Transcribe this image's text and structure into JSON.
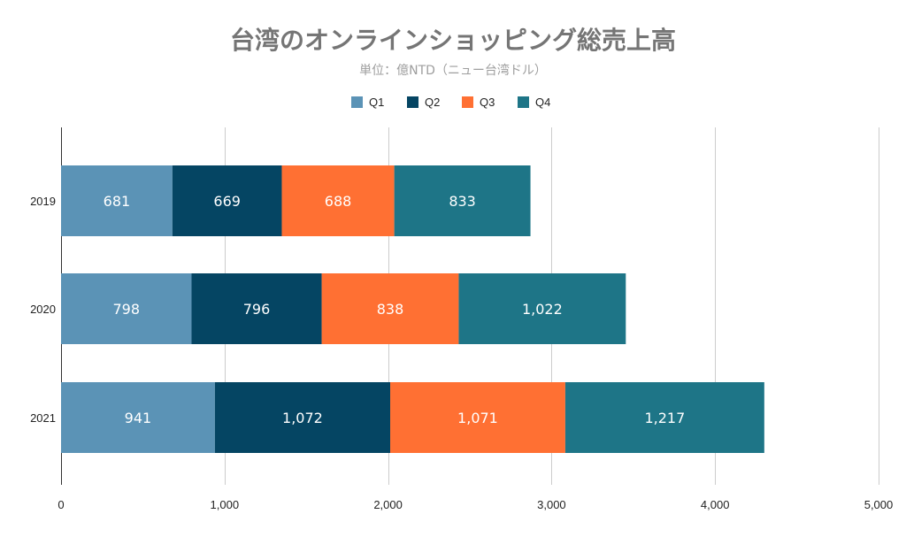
{
  "chart_data": {
    "type": "bar",
    "orientation": "horizontal",
    "stacked": true,
    "title": "台湾のオンラインショッピング総売上高",
    "subtitle": "単位：億NTD（ニュー台湾ドル）",
    "categories": [
      "2019",
      "2020",
      "2021"
    ],
    "series": [
      {
        "name": "Q1",
        "color": "#5b93b6",
        "values": [
          681,
          798,
          941
        ]
      },
      {
        "name": "Q2",
        "color": "#054563",
        "values": [
          669,
          796,
          1072
        ]
      },
      {
        "name": "Q3",
        "color": "#ff7033",
        "values": [
          688,
          838,
          1071
        ]
      },
      {
        "name": "Q4",
        "color": "#1e7587",
        "values": [
          833,
          1022,
          1217
        ]
      }
    ],
    "xlim": [
      0,
      5000
    ],
    "xticks": [
      0,
      1000,
      2000,
      3000,
      4000,
      5000
    ],
    "xtick_labels": [
      "0",
      "1,000",
      "2,000",
      "3,000",
      "4,000",
      "5,000"
    ],
    "grid": true,
    "legend_position": "top"
  }
}
